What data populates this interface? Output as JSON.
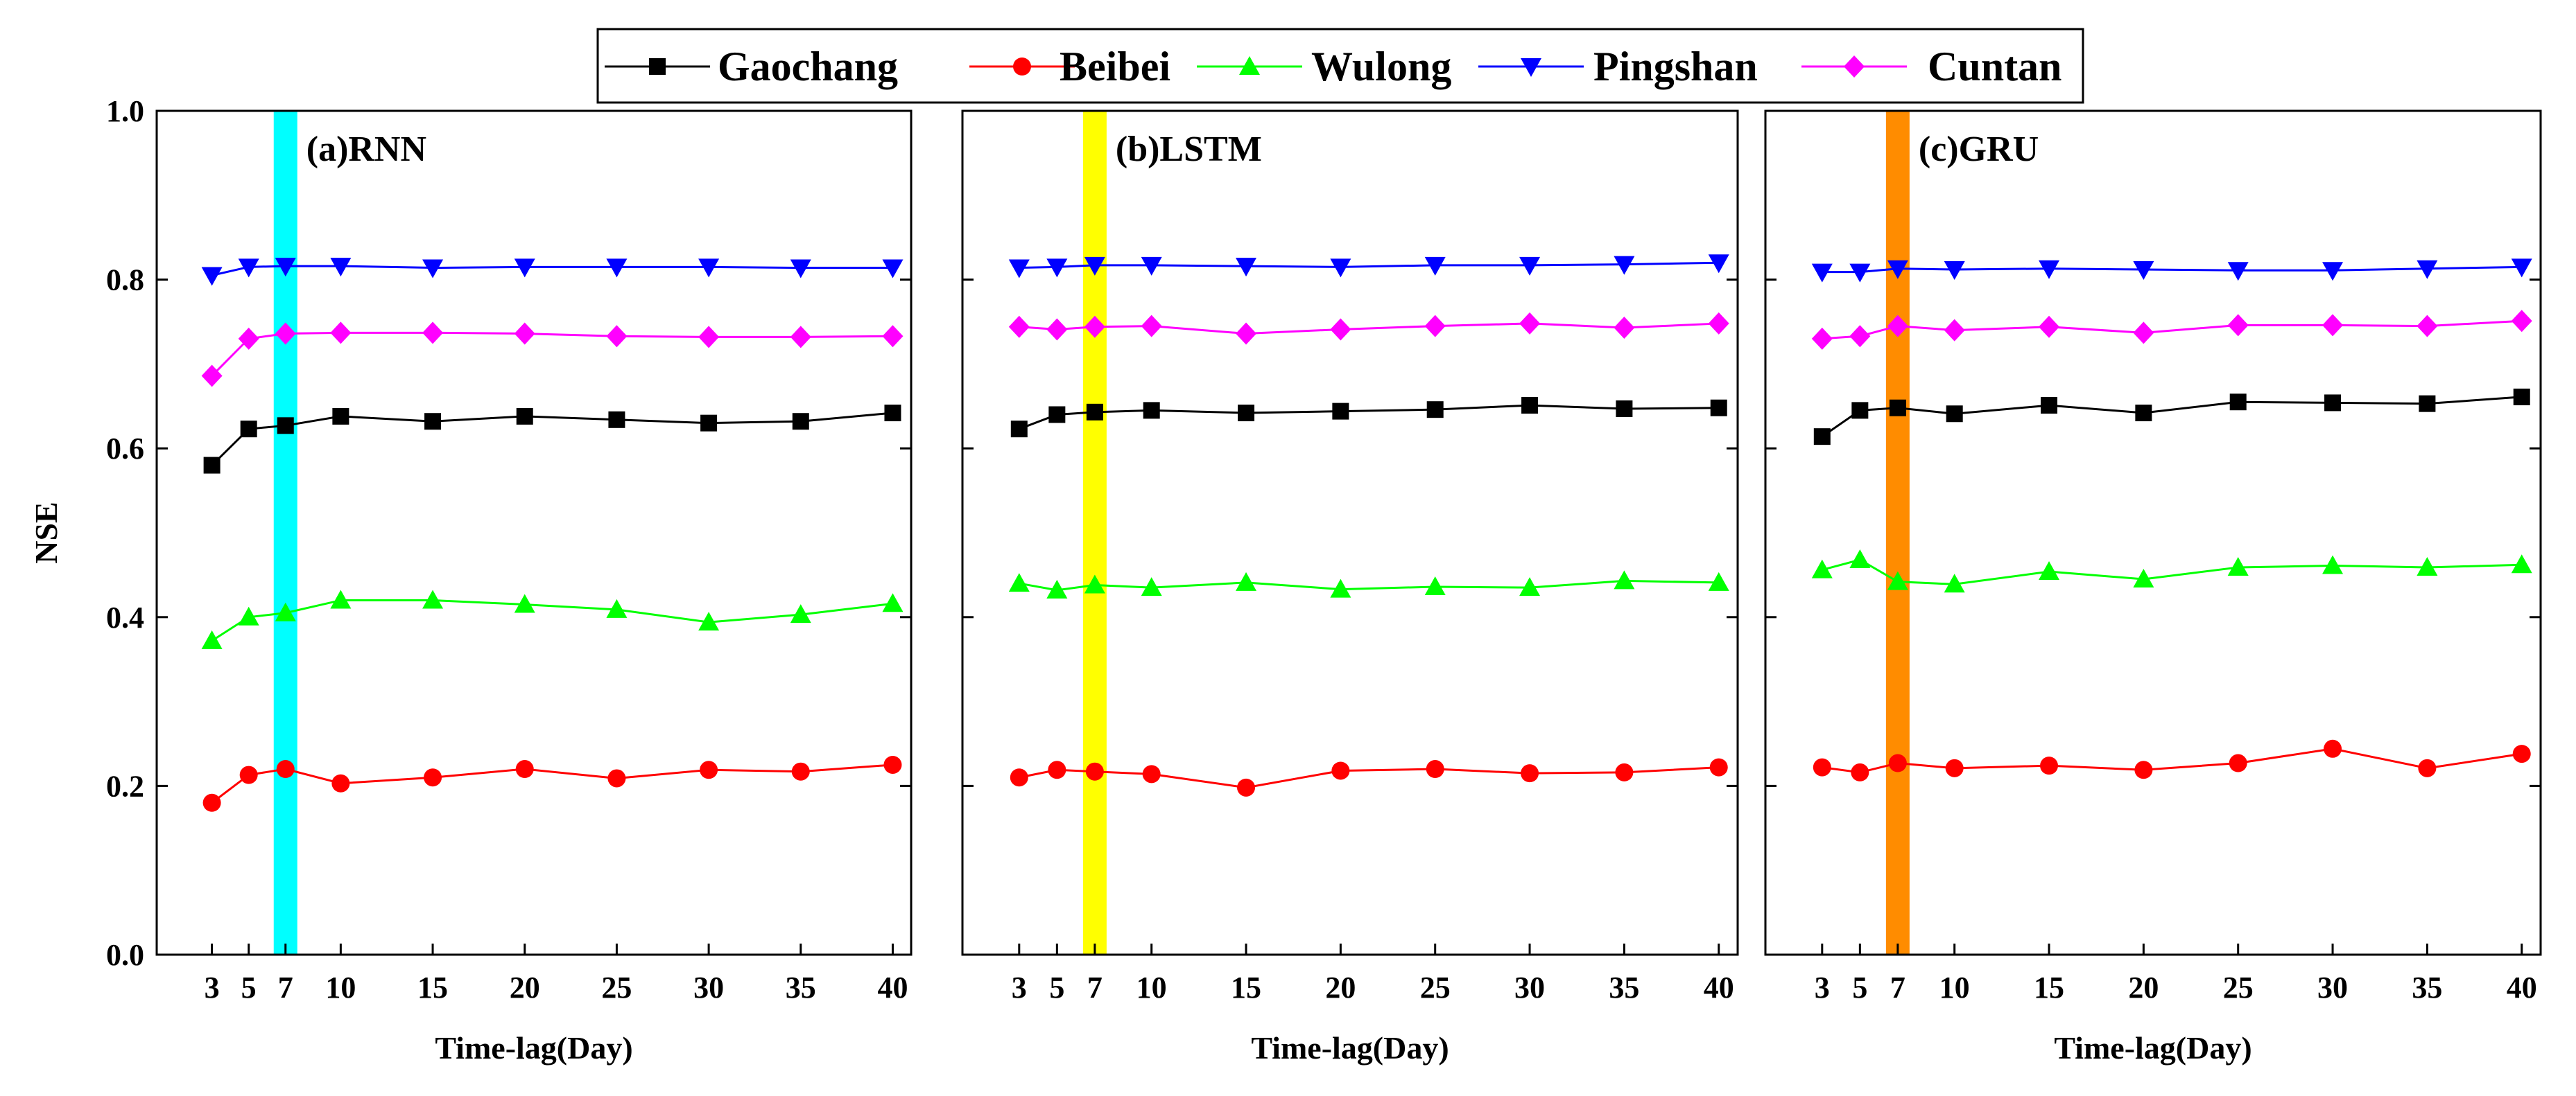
{
  "chart_data": {
    "type": "line",
    "ylabel": "NSE",
    "xlabel": "Time-lag(Day)",
    "ylim": [
      0.0,
      1.0
    ],
    "yticks": [
      "0.0",
      "0.2",
      "0.4",
      "0.6",
      "0.8",
      "1.0"
    ],
    "ytick_values": [
      0.0,
      0.2,
      0.4,
      0.6,
      0.8,
      1.0
    ],
    "x": [
      3,
      5,
      7,
      10,
      15,
      20,
      25,
      30,
      35,
      40
    ],
    "xtick_labels": [
      "3",
      "5",
      "7",
      "10",
      "15",
      "20",
      "25",
      "30",
      "35",
      "40"
    ],
    "xlim": [
      0,
      41
    ],
    "legend": [
      {
        "name": "Gaochang",
        "color": "#000000",
        "marker": "square"
      },
      {
        "name": "Beibei",
        "color": "#ff0000",
        "marker": "circle"
      },
      {
        "name": "Wulong",
        "color": "#00ff00",
        "marker": "triangle-up"
      },
      {
        "name": "Pingshan",
        "color": "#0000ff",
        "marker": "triangle-down"
      },
      {
        "name": "Cuntan",
        "color": "#ff00ff",
        "marker": "diamond"
      }
    ],
    "panels": [
      {
        "title": "(a)RNN",
        "highlight": {
          "x": 7,
          "color": "#00ffff"
        },
        "series": [
          {
            "name": "Gaochang",
            "values": [
              0.58,
              0.623,
              0.627,
              0.638,
              0.632,
              0.638,
              0.634,
              0.63,
              0.632,
              0.642
            ]
          },
          {
            "name": "Beibei",
            "values": [
              0.18,
              0.213,
              0.22,
              0.203,
              0.21,
              0.22,
              0.209,
              0.219,
              0.217,
              0.225
            ]
          },
          {
            "name": "Wulong",
            "values": [
              0.372,
              0.4,
              0.405,
              0.42,
              0.42,
              0.415,
              0.409,
              0.394,
              0.403,
              0.416
            ]
          },
          {
            "name": "Pingshan",
            "values": [
              0.805,
              0.815,
              0.816,
              0.816,
              0.814,
              0.815,
              0.815,
              0.815,
              0.814,
              0.814
            ]
          },
          {
            "name": "Cuntan",
            "values": [
              0.686,
              0.73,
              0.736,
              0.737,
              0.737,
              0.736,
              0.733,
              0.732,
              0.732,
              0.733
            ]
          }
        ]
      },
      {
        "title": "(b)LSTM",
        "highlight": {
          "x": 7,
          "color": "#ffff00"
        },
        "series": [
          {
            "name": "Gaochang",
            "values": [
              0.623,
              0.64,
              0.643,
              0.645,
              0.642,
              0.644,
              0.646,
              0.651,
              0.647,
              0.648
            ]
          },
          {
            "name": "Beibei",
            "values": [
              0.21,
              0.219,
              0.217,
              0.214,
              0.198,
              0.218,
              0.22,
              0.215,
              0.216,
              0.222
            ]
          },
          {
            "name": "Wulong",
            "values": [
              0.44,
              0.432,
              0.438,
              0.435,
              0.441,
              0.433,
              0.436,
              0.435,
              0.443,
              0.441
            ]
          },
          {
            "name": "Pingshan",
            "values": [
              0.814,
              0.815,
              0.817,
              0.817,
              0.816,
              0.815,
              0.817,
              0.817,
              0.818,
              0.82
            ]
          },
          {
            "name": "Cuntan",
            "values": [
              0.744,
              0.741,
              0.744,
              0.745,
              0.736,
              0.741,
              0.745,
              0.748,
              0.743,
              0.748
            ]
          }
        ]
      },
      {
        "title": "(c)GRU",
        "highlight": {
          "x": 7,
          "color": "#ff8c00"
        },
        "series": [
          {
            "name": "Gaochang",
            "values": [
              0.614,
              0.645,
              0.648,
              0.641,
              0.651,
              0.642,
              0.655,
              0.654,
              0.653,
              0.661
            ]
          },
          {
            "name": "Beibei",
            "values": [
              0.222,
              0.216,
              0.227,
              0.221,
              0.224,
              0.219,
              0.227,
              0.244,
              0.221,
              0.238
            ]
          },
          {
            "name": "Wulong",
            "values": [
              0.456,
              0.468,
              0.442,
              0.439,
              0.454,
              0.445,
              0.459,
              0.461,
              0.459,
              0.462
            ]
          },
          {
            "name": "Pingshan",
            "values": [
              0.809,
              0.809,
              0.813,
              0.812,
              0.813,
              0.812,
              0.811,
              0.811,
              0.813,
              0.815
            ]
          },
          {
            "name": "Cuntan",
            "values": [
              0.73,
              0.733,
              0.745,
              0.74,
              0.744,
              0.737,
              0.746,
              0.746,
              0.745,
              0.751
            ]
          }
        ]
      }
    ]
  }
}
